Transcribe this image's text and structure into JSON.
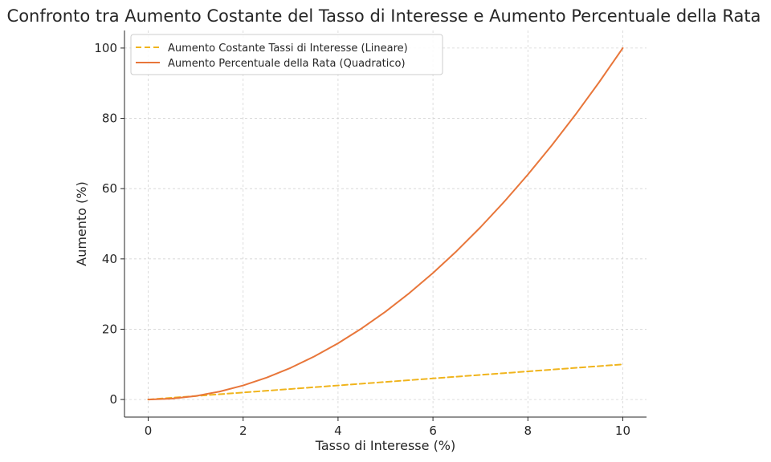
{
  "chart_data": {
    "type": "line",
    "title": "Confronto tra Aumento Costante del Tasso di Interesse e Aumento Percentuale della Rata",
    "xlabel": "Tasso di Interesse (%)",
    "ylabel": "Aumento (%)",
    "xlim": [
      -0.5,
      10.5
    ],
    "ylim": [
      -5,
      105
    ],
    "xticks": [
      0,
      2,
      4,
      6,
      8,
      10
    ],
    "yticks": [
      0,
      20,
      40,
      60,
      80,
      100
    ],
    "grid": true,
    "legend_position": "top-left",
    "x": [
      0,
      0.5,
      1,
      1.5,
      2,
      2.5,
      3,
      3.5,
      4,
      4.5,
      5,
      5.5,
      6,
      6.5,
      7,
      7.5,
      8,
      8.5,
      9,
      9.5,
      10
    ],
    "series": [
      {
        "name": "Aumento Costante Tassi di Interesse (Lineare)",
        "style": "dashed",
        "color": "#f0b41c",
        "values": [
          0,
          0.5,
          1,
          1.5,
          2,
          2.5,
          3,
          3.5,
          4,
          4.5,
          5,
          5.5,
          6,
          6.5,
          7,
          7.5,
          8,
          8.5,
          9,
          9.5,
          10
        ]
      },
      {
        "name": "Aumento Percentuale della Rata (Quadratico)",
        "style": "solid",
        "color": "#e8763a",
        "values": [
          0,
          0.25,
          1,
          2.25,
          4,
          6.25,
          9,
          12.25,
          16,
          20.25,
          25,
          30.25,
          36,
          42.25,
          49,
          56.25,
          64,
          72.25,
          81,
          90.25,
          100
        ]
      }
    ]
  }
}
